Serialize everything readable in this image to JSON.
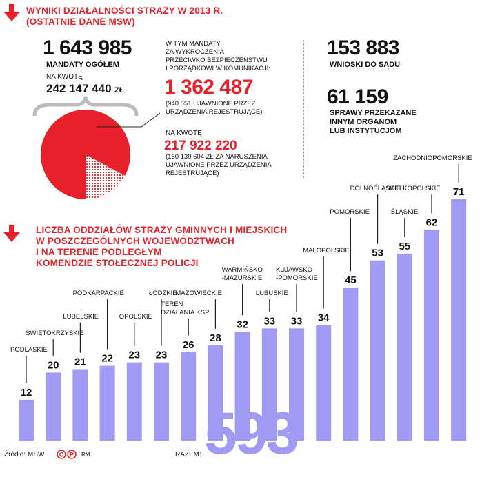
{
  "top": {
    "title_line1": "WYNIKI DZIAŁALNOŚCI STRAŻY W 2013 R.",
    "title_line2": "(OSTATNIE DANE MSW)",
    "total_value": "1 643 985",
    "total_label": "MANDATY OGÓŁEM",
    "amount_label": "NA KWOTĘ",
    "amount_value": "242 147 440",
    "amount_unit": "ZŁ",
    "sub_intro": [
      "W TYM MANDATY",
      "ZA WYKROCZENIA",
      "PRZECIWKO BEZPIECZEŃSTWU",
      "I PORZĄDKOWI W KOMUNIKACJI:"
    ],
    "sub_value": "1 362 487",
    "sub_note": [
      "(940 551 UJAWNIONE PRZEZ",
      "URZĄDZENIA REJESTRUJĄCE)"
    ],
    "sub_amount_label": "NA KWOTĘ",
    "sub_amount_value": "217 922 220",
    "sub_amount_note": [
      "(160 139 604 ZŁ ZA NARUSZENIA",
      "UJAWNIONE PRZEZ URZĄDZENIA",
      "REJESTRUJĄCE)"
    ],
    "right_value1": "153 883",
    "right_label1": "WNIOSKI DO SĄDU",
    "right_value2": "61 159",
    "right_label2": [
      "SPRAWY PRZEKAZANE",
      "INNYM ORGANOM",
      "LUB INSTYTUCJOM"
    ]
  },
  "bottom": {
    "title_lines": [
      "LICZBA ODDZIAŁÓW STRAŻY GMINNYCH I MIEJSKICH",
      "W POSZCZEGÓLNYCH WOJEWÓDZTWACH",
      "I NA TERENIE PODLEGŁYM",
      "KOMENDZIE STOŁECZNEJ POLICJI"
    ],
    "total_label": "RAZEM:",
    "total_value": "593",
    "source": "Źródło: MSW",
    "credit": "RM"
  },
  "colors": {
    "accent": "#e8202a",
    "bar": "#a09af5",
    "pie_share": "#e8202a"
  },
  "chart_data": [
    {
      "type": "pie",
      "values": [
        1362487,
        281498
      ],
      "note": "share of mandates for traffic offences (1 362 487) in total 1 643 985"
    },
    {
      "type": "bar",
      "categories": [
        "PODLASKIE",
        "ŚWIĘTOKRZYSKIE",
        "LUBELSKIE",
        "PODKARPACKIE",
        "OPOLSKIE",
        "ŁÓDZKIE",
        "TEREN DZIAŁANIA KSP",
        "MAZOWIECKIE",
        "WARMIŃSKO--MAZURSKIE",
        "LUBUSKIE",
        "KUJAWSKO--POMORSKIE",
        "MAŁOPOLSKIE",
        "POMORSKIE",
        "DOLNOŚLĄSKIE",
        "ŚLĄSKIE",
        "WIELKOPOLSKIE",
        "ZACHODNIOPOMORSKIE"
      ],
      "values": [
        12,
        20,
        21,
        22,
        23,
        23,
        26,
        28,
        32,
        33,
        33,
        34,
        45,
        53,
        55,
        62,
        71
      ],
      "title": "",
      "xlabel": "",
      "ylabel": "",
      "ylim": [
        0,
        75
      ],
      "grid": false
    }
  ]
}
